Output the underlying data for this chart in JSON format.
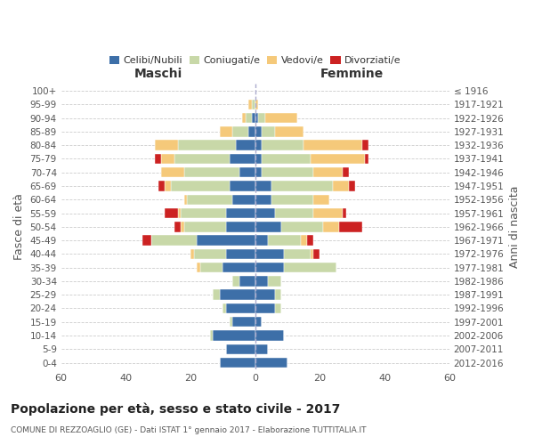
{
  "age_groups": [
    "0-4",
    "5-9",
    "10-14",
    "15-19",
    "20-24",
    "25-29",
    "30-34",
    "35-39",
    "40-44",
    "45-49",
    "50-54",
    "55-59",
    "60-64",
    "65-69",
    "70-74",
    "75-79",
    "80-84",
    "85-89",
    "90-94",
    "95-99",
    "100+"
  ],
  "birth_years": [
    "2012-2016",
    "2007-2011",
    "2002-2006",
    "1997-2001",
    "1992-1996",
    "1987-1991",
    "1982-1986",
    "1977-1981",
    "1972-1976",
    "1967-1971",
    "1962-1966",
    "1957-1961",
    "1952-1956",
    "1947-1951",
    "1942-1946",
    "1937-1941",
    "1932-1936",
    "1927-1931",
    "1922-1926",
    "1917-1921",
    "≤ 1916"
  ],
  "maschi": {
    "celibi": [
      11,
      9,
      13,
      7,
      9,
      11,
      5,
      10,
      9,
      18,
      9,
      9,
      7,
      8,
      5,
      8,
      6,
      2,
      1,
      0,
      0
    ],
    "coniugati": [
      0,
      0,
      1,
      1,
      1,
      2,
      2,
      7,
      10,
      14,
      13,
      14,
      14,
      18,
      17,
      17,
      18,
      5,
      2,
      1,
      0
    ],
    "vedovi": [
      0,
      0,
      0,
      0,
      0,
      0,
      0,
      1,
      1,
      0,
      1,
      1,
      1,
      2,
      7,
      4,
      7,
      4,
      1,
      1,
      0
    ],
    "divorziati": [
      0,
      0,
      0,
      0,
      0,
      0,
      0,
      0,
      0,
      3,
      2,
      4,
      0,
      2,
      0,
      2,
      0,
      0,
      0,
      0,
      0
    ]
  },
  "femmine": {
    "nubili": [
      10,
      4,
      9,
      2,
      6,
      6,
      4,
      9,
      9,
      4,
      8,
      6,
      5,
      5,
      2,
      2,
      2,
      2,
      1,
      0,
      0
    ],
    "coniugate": [
      0,
      0,
      0,
      0,
      2,
      2,
      4,
      16,
      8,
      10,
      13,
      12,
      13,
      19,
      16,
      15,
      13,
      4,
      2,
      0,
      0
    ],
    "vedove": [
      0,
      0,
      0,
      0,
      0,
      0,
      0,
      0,
      1,
      2,
      5,
      9,
      5,
      5,
      9,
      17,
      18,
      9,
      10,
      1,
      0
    ],
    "divorziate": [
      0,
      0,
      0,
      0,
      0,
      0,
      0,
      0,
      2,
      2,
      7,
      1,
      0,
      2,
      2,
      1,
      2,
      0,
      0,
      0,
      0
    ]
  },
  "colors": {
    "celibi": "#3d6fa8",
    "coniugati": "#c8d8a8",
    "vedovi": "#f5c97a",
    "divorziati": "#cc2222"
  },
  "legend_labels": [
    "Celibi/Nubili",
    "Coniugati/e",
    "Vedovi/e",
    "Divorziati/e"
  ],
  "xlim": 60,
  "title_main": "Popolazione per età, sesso e stato civile - 2017",
  "title_sub": "COMUNE DI REZZOAGLIO (GE) - Dati ISTAT 1° gennaio 2017 - Elaborazione TUTTITALIA.IT",
  "ylabel_left": "Fasce di età",
  "ylabel_right": "Anni di nascita",
  "xlabel_maschi": "Maschi",
  "xlabel_femmine": "Femmine"
}
